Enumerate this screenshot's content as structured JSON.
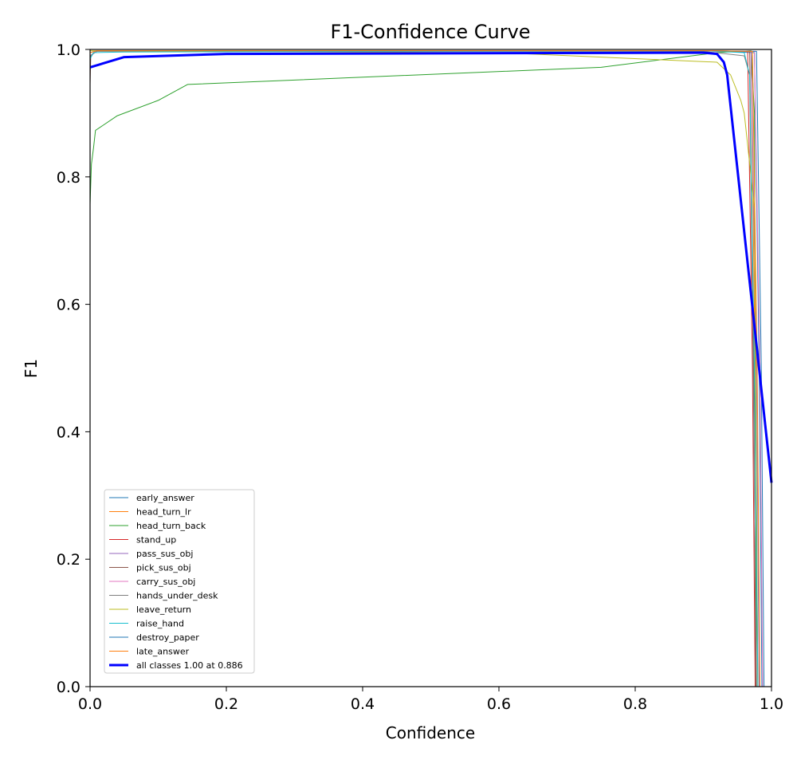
{
  "chart_data": {
    "type": "line",
    "title": "F1-Confidence Curve",
    "xlabel": "Confidence",
    "ylabel": "F1",
    "xlim": [
      0,
      1
    ],
    "ylim": [
      0,
      1
    ],
    "xticks": [
      "0.0",
      "0.2",
      "0.4",
      "0.6",
      "0.8",
      "1.0"
    ],
    "yticks": [
      "0.0",
      "0.2",
      "0.4",
      "0.6",
      "0.8",
      "1.0"
    ],
    "grid": false,
    "legend_position": "lower-left",
    "series": [
      {
        "name": "early_answer",
        "color": "#1f77b4",
        "width": 1,
        "x": [
          0,
          0.01,
          0.9,
          0.975,
          0.982,
          0.986
        ],
        "y": [
          0.99,
          0.998,
          0.998,
          0.995,
          0.5,
          0
        ]
      },
      {
        "name": "head_turn_lr",
        "color": "#ff7f0e",
        "width": 1,
        "x": [
          0,
          0.01,
          0.9,
          0.97,
          0.976,
          0.98
        ],
        "y": [
          0.99,
          0.998,
          0.998,
          0.997,
          0.5,
          0
        ]
      },
      {
        "name": "head_turn_back",
        "color": "#2ca02c",
        "width": 1,
        "x": [
          0,
          0.002,
          0.005,
          0.008,
          0.04,
          0.1,
          0.143,
          0.75,
          0.92,
          0.97,
          0.975,
          0.978
        ],
        "y": [
          0.757,
          0.82,
          0.845,
          0.873,
          0.896,
          0.92,
          0.945,
          0.972,
          0.995,
          0.998,
          0.9,
          0
        ]
      },
      {
        "name": "stand_up",
        "color": "#d62728",
        "width": 1,
        "x": [
          0,
          0.01,
          0.9,
          0.965,
          0.972,
          0.976
        ],
        "y": [
          0.99,
          0.998,
          0.998,
          0.997,
          0.5,
          0
        ]
      },
      {
        "name": "pass_sus_obj",
        "color": "#9467bd",
        "width": 1,
        "x": [
          0,
          0.01,
          0.9,
          0.97,
          0.978,
          0.982
        ],
        "y": [
          0.99,
          0.998,
          0.998,
          0.997,
          0.5,
          0
        ]
      },
      {
        "name": "pick_sus_obj",
        "color": "#8c564b",
        "width": 1,
        "x": [
          0,
          0.001,
          0.01,
          0.9,
          0.968,
          0.974,
          0.977
        ],
        "y": [
          0.945,
          0.99,
          0.998,
          0.998,
          0.997,
          0.5,
          0
        ]
      },
      {
        "name": "carry_sus_obj",
        "color": "#e377c2",
        "width": 1,
        "x": [
          0,
          0.01,
          0.9,
          0.975,
          0.983,
          0.987
        ],
        "y": [
          0.99,
          0.998,
          0.998,
          0.997,
          0.5,
          0
        ]
      },
      {
        "name": "hands_under_desk",
        "color": "#7f7f7f",
        "width": 1,
        "x": [
          0,
          0.01,
          0.9,
          0.96,
          0.968,
          0.972,
          0.978
        ],
        "y": [
          0.99,
          0.997,
          0.997,
          0.99,
          0.96,
          0.6,
          0
        ]
      },
      {
        "name": "leave_return",
        "color": "#bcbd22",
        "width": 1,
        "x": [
          0,
          0.6,
          0.92,
          0.94,
          0.955,
          0.96,
          0.965,
          0.975,
          0.98
        ],
        "y": [
          0.998,
          0.995,
          0.98,
          0.96,
          0.92,
          0.9,
          0.85,
          0.75,
          0
        ]
      },
      {
        "name": "raise_hand",
        "color": "#17becf",
        "width": 1,
        "x": [
          0,
          0.005,
          0.05,
          0.9,
          0.96,
          0.968,
          0.975,
          0.98
        ],
        "y": [
          0.985,
          0.995,
          0.996,
          0.998,
          0.995,
          0.96,
          0.5,
          0
        ]
      },
      {
        "name": "destroy_paper",
        "color": "#1f77b4",
        "width": 1,
        "x": [
          0,
          0.01,
          0.9,
          0.978,
          0.985,
          0.989
        ],
        "y": [
          0.995,
          0.998,
          0.998,
          0.997,
          0.5,
          0
        ]
      },
      {
        "name": "late_answer",
        "color": "#ff7f0e",
        "width": 1,
        "x": [
          0,
          0.01,
          0.9,
          0.972,
          0.979,
          0.983
        ],
        "y": [
          0.995,
          0.998,
          0.998,
          0.997,
          0.5,
          0
        ]
      },
      {
        "name": "all classes 1.00 at 0.886",
        "color": "#0000ff",
        "width": 3,
        "x": [
          0,
          0.05,
          0.2,
          0.9,
          0.92,
          0.93,
          0.935,
          1.0
        ],
        "y": [
          0.972,
          0.988,
          0.993,
          0.995,
          0.993,
          0.98,
          0.96,
          0.32
        ]
      }
    ]
  }
}
